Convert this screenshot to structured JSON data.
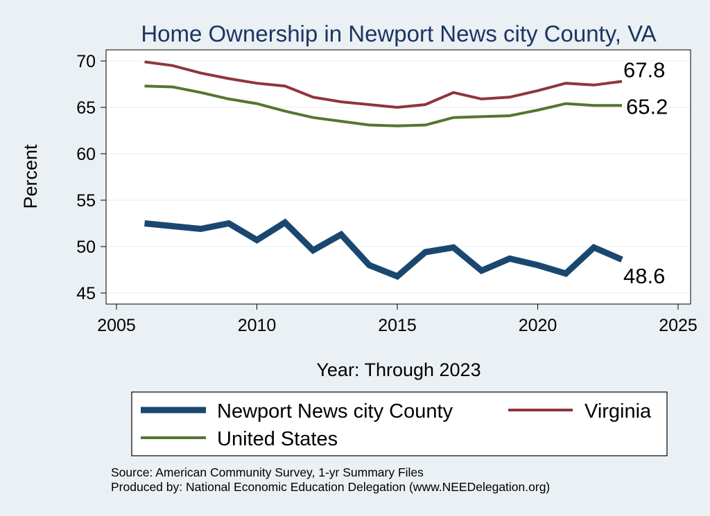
{
  "chart_data": {
    "type": "line",
    "title": "Home Ownership in Newport News city County, VA",
    "xlabel": "Year: Through 2023",
    "ylabel": "Percent",
    "xlim": [
      2005,
      2025
    ],
    "ylim": [
      45,
      70
    ],
    "xticks": [
      2005,
      2010,
      2015,
      2020,
      2025
    ],
    "yticks": [
      45,
      50,
      55,
      60,
      65,
      70
    ],
    "grid": true,
    "legend_position": "bottom",
    "x": [
      2006,
      2007,
      2008,
      2009,
      2010,
      2011,
      2012,
      2013,
      2014,
      2015,
      2016,
      2017,
      2018,
      2019,
      2020,
      2021,
      2022,
      2023
    ],
    "series": [
      {
        "name": "Newport News city County",
        "color": "#1a476f",
        "values": [
          52.5,
          52.2,
          51.9,
          52.5,
          50.7,
          52.6,
          49.6,
          51.3,
          48.0,
          46.8,
          49.4,
          49.9,
          47.4,
          48.7,
          48.0,
          47.1,
          49.9,
          48.6
        ],
        "end_label": "48.6"
      },
      {
        "name": "Virginia",
        "color": "#90353b",
        "values": [
          69.9,
          69.5,
          68.7,
          68.1,
          67.6,
          67.3,
          66.1,
          65.6,
          65.3,
          65.0,
          65.3,
          66.6,
          65.9,
          66.1,
          66.8,
          67.6,
          67.4,
          67.8
        ],
        "end_label": "67.8"
      },
      {
        "name": "United States",
        "color": "#55752f",
        "values": [
          67.3,
          67.2,
          66.6,
          65.9,
          65.4,
          64.6,
          63.9,
          63.5,
          63.1,
          63.0,
          63.1,
          63.9,
          64.0,
          64.1,
          64.7,
          65.4,
          65.2,
          65.2
        ],
        "end_label": "65.2"
      }
    ],
    "source_lines": [
      "Source: American Community Survey, 1-yr Summary Files",
      "Produced by: National Economic Education Delegation (www.NEEDelegation.org)"
    ]
  }
}
